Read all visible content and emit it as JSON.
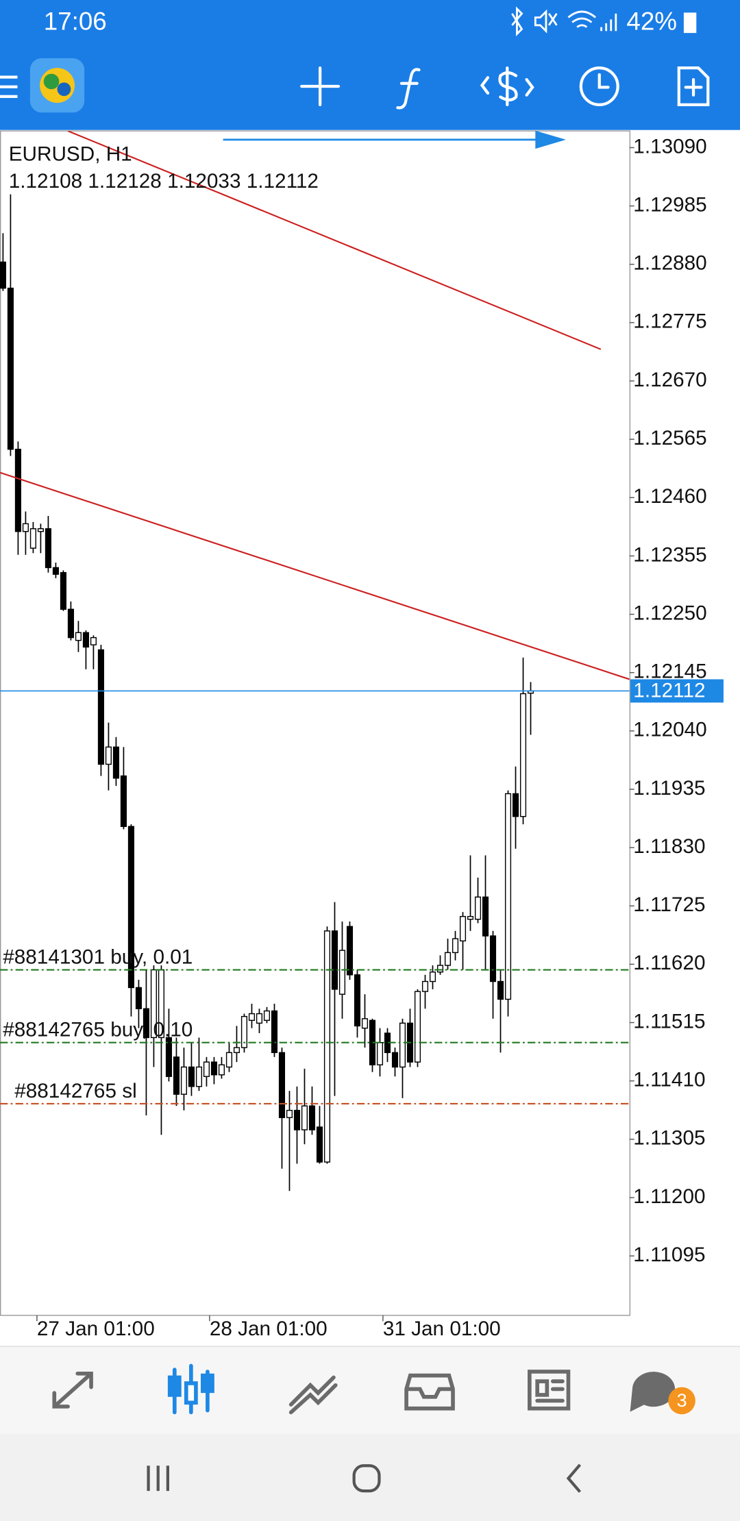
{
  "status_bar": {
    "time": "17:06",
    "battery": "42%"
  },
  "chart_data": {
    "type": "candlestick",
    "title": "EURUSD, H1",
    "subtitle": "1.12108 1.12128 1.12033 1.12112",
    "candles": {
      "open": [
        1.12884,
        1.12837,
        1.12547,
        1.12399,
        1.12369,
        1.12399,
        1.12404,
        1.12334,
        1.12325,
        1.12259,
        1.12203,
        1.12217,
        1.12195,
        1.12186,
        1.1198,
        1.12011,
        1.11959,
        1.11868,
        1.11578,
        1.1154,
        1.11488,
        1.11488,
        1.11488,
        1.11453,
        1.11386,
        1.11435,
        1.114,
        1.11418,
        1.11444,
        1.11421,
        1.11435,
        1.11461,
        1.1147,
        1.11519,
        1.11514,
        1.11519,
        1.11536,
        1.11461,
        1.11344,
        1.11357,
        1.11322,
        1.11365,
        1.11327,
        1.11264,
        1.1168,
        1.11566,
        1.11688,
        1.11601,
        1.11505,
        1.11519,
        1.11439,
        1.11496,
        1.11461,
        1.11435,
        1.11514,
        1.11444,
        1.11571,
        1.11589,
        1.11606,
        1.11618,
        1.11641,
        1.11662,
        1.11701,
        1.11701,
        1.11741,
        1.11671,
        1.11589,
        1.11557,
        1.11927,
        1.11886,
        1.12108
      ],
      "high": [
        1.12936,
        1.13006,
        1.12561,
        1.12435,
        1.12416,
        1.12413,
        1.12427,
        1.12343,
        1.12329,
        1.12273,
        1.12238,
        1.12221,
        1.12212,
        1.12195,
        1.12055,
        1.12029,
        1.12011,
        1.11872,
        1.11592,
        1.1161,
        1.11618,
        1.11618,
        1.1154,
        1.11488,
        1.1147,
        1.11479,
        1.11488,
        1.11453,
        1.11453,
        1.11453,
        1.11479,
        1.11509,
        1.11531,
        1.11549,
        1.1154,
        1.11543,
        1.11549,
        1.1147,
        1.11392,
        1.114,
        1.11432,
        1.114,
        1.11365,
        1.11688,
        1.11732,
        1.11697,
        1.11697,
        1.1161,
        1.11566,
        1.11522,
        1.11505,
        1.11505,
        1.1147,
        1.11522,
        1.1154,
        1.11575,
        1.11601,
        1.11618,
        1.11636,
        1.11666,
        1.1168,
        1.11714,
        1.11816,
        1.11776,
        1.11816,
        1.1168,
        1.1161,
        1.11933,
        1.11976,
        1.12172,
        1.12128
      ],
      "low": [
        1.12832,
        1.12535,
        1.12357,
        1.12357,
        1.1236,
        1.1236,
        1.12325,
        1.12315,
        1.12256,
        1.12203,
        1.12182,
        1.12151,
        1.12151,
        1.11959,
        1.11933,
        1.11941,
        1.11863,
        1.11526,
        1.11505,
        1.11348,
        1.11435,
        1.11313,
        1.11409,
        1.11365,
        1.11357,
        1.11383,
        1.11392,
        1.114,
        1.11404,
        1.11414,
        1.11426,
        1.11444,
        1.11461,
        1.11505,
        1.11496,
        1.11514,
        1.11453,
        1.11252,
        1.11212,
        1.11261,
        1.11296,
        1.11313,
        1.11261,
        1.11261,
        1.11383,
        1.11522,
        1.11592,
        1.11488,
        1.1147,
        1.11426,
        1.11418,
        1.11444,
        1.11418,
        1.11379,
        1.11435,
        1.11435,
        1.1154,
        1.11575,
        1.11601,
        1.1161,
        1.11627,
        1.1161,
        1.1168,
        1.11694,
        1.1161,
        1.11522,
        1.11461,
        1.11526,
        1.11828,
        1.11872,
        1.12033
      ],
      "close": [
        1.12837,
        1.12547,
        1.12399,
        1.12413,
        1.12404,
        1.12404,
        1.12334,
        1.12322,
        1.12259,
        1.12208,
        1.12217,
        1.12191,
        1.12208,
        1.1198,
        1.12011,
        1.11955,
        1.11868,
        1.11578,
        1.1154,
        1.11488,
        1.1161,
        1.1161,
        1.11418,
        1.11386,
        1.11435,
        1.114,
        1.11435,
        1.11444,
        1.11421,
        1.11439,
        1.11461,
        1.1147,
        1.11526,
        1.11531,
        1.11531,
        1.11536,
        1.11461,
        1.11344,
        1.11357,
        1.11322,
        1.11365,
        1.11322,
        1.11264,
        1.1168,
        1.11575,
        1.11645,
        1.11601,
        1.11509,
        1.11522,
        1.11439,
        1.11479,
        1.11461,
        1.11435,
        1.11514,
        1.11444,
        1.11571,
        1.11589,
        1.11606,
        1.11618,
        1.11641,
        1.11666,
        1.11706,
        1.11706,
        1.11741,
        1.11671,
        1.11589,
        1.11557,
        1.11927,
        1.11886,
        1.12107,
        1.12112
      ]
    },
    "up_color": "#ffffff",
    "down_color": "#000000",
    "xlim": [
      -0.4,
      83.1
    ],
    "xticks": [
      {
        "value": 4.5,
        "label": "27 Jan 01:00"
      },
      {
        "value": 27.4,
        "label": "28 Jan 01:00"
      },
      {
        "value": 50.4,
        "label": "31 Jan 01:00"
      }
    ],
    "ylim": [
      1.10988,
      1.1312
    ],
    "yticks": [
      {
        "value": 1.1309,
        "label": "1.13090"
      },
      1.12985,
      {
        "value": 1.1288,
        "label": "1.12880"
      },
      1.12775,
      {
        "value": 1.1267,
        "label": "1.12670"
      },
      1.12565,
      {
        "value": 1.1246,
        "label": "1.12460"
      },
      1.12355,
      {
        "value": 1.1225,
        "label": "1.12250"
      },
      1.12145,
      {
        "value": 1.1204,
        "label": "1.12040"
      },
      1.11935,
      {
        "value": 1.1183,
        "label": "1.11830"
      },
      1.11725,
      {
        "value": 1.1162,
        "label": "1.11620"
      },
      1.11515,
      {
        "value": 1.1141,
        "label": "1.11410"
      },
      1.11305,
      {
        "value": 1.112,
        "label": "1.11200"
      },
      1.11095
    ],
    "current_price": 1.12112,
    "current_price_color": "#1e88e5",
    "order_lines": [
      {
        "name": "#88141301 buy, 0.01",
        "value": 1.1161,
        "color": "#1f7a1f"
      },
      {
        "name": "#88142765 buy, 0.10",
        "value": 1.11479,
        "color": "#1f7a1f"
      },
      {
        "name": "#88142765 sl",
        "value": 1.11369,
        "color": "#c8501e"
      }
    ],
    "trendlines": [
      {
        "x": [
          8.6,
          79.3
        ],
        "values": [
          1.1312,
          1.12727
        ],
        "color": "#cc1f1f"
      },
      {
        "x": [
          -0.4,
          83.1
        ],
        "values": [
          1.12505,
          1.12133
        ],
        "color": "#cc1f1f"
      }
    ]
  },
  "chat_badge": "3"
}
